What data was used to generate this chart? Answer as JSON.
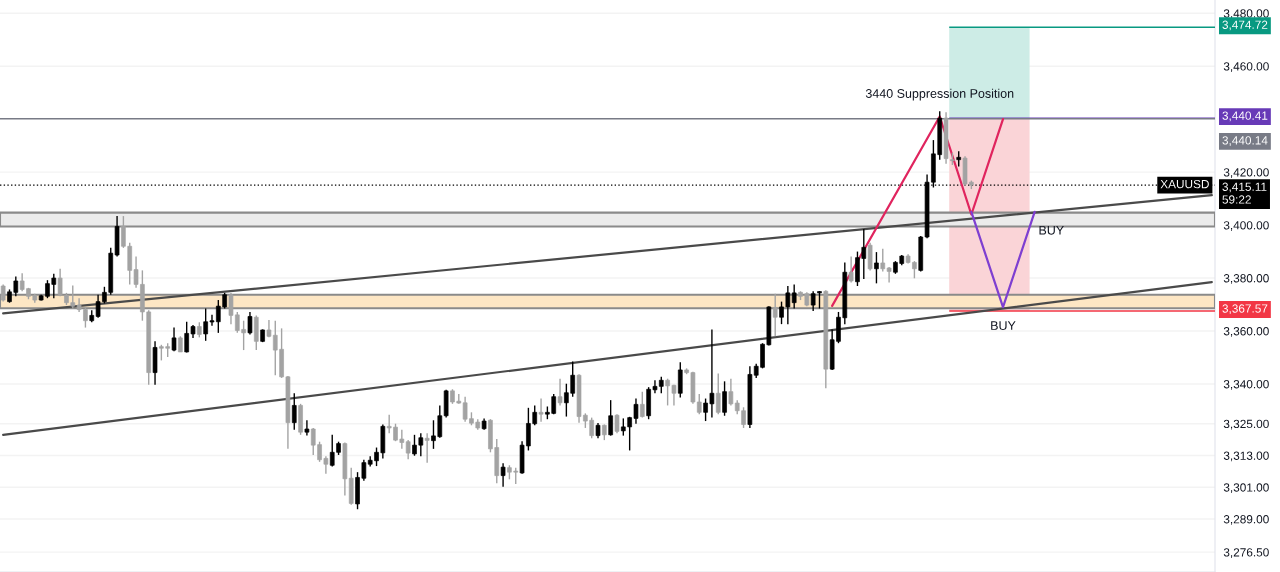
{
  "chart_data": {
    "type": "candlestick",
    "categories": [
      null,
      null,
      null,
      null,
      null,
      null,
      null,
      null,
      null,
      null,
      null,
      null,
      null,
      null,
      null,
      null,
      null,
      null,
      null,
      null,
      null,
      null,
      null,
      null,
      null,
      null,
      null,
      null,
      null,
      null,
      null,
      null,
      null,
      null,
      null,
      null,
      null,
      null,
      null,
      null,
      null,
      null,
      null,
      null,
      null,
      null,
      null,
      null,
      null,
      null,
      null,
      null,
      null,
      null,
      null,
      null,
      null,
      null,
      null,
      null,
      null,
      null,
      null,
      null,
      null,
      null,
      null,
      null,
      null,
      null,
      null,
      null,
      null,
      null,
      null,
      null,
      null,
      null,
      null,
      null,
      null,
      null,
      null,
      null,
      null,
      null,
      null,
      null,
      null,
      null,
      null,
      null,
      null,
      null,
      null,
      null,
      null,
      null,
      null,
      null,
      null,
      null,
      null,
      null,
      null,
      null,
      null,
      null,
      null,
      null,
      null,
      null,
      null,
      null,
      null,
      null,
      null,
      null,
      null,
      null,
      null,
      null,
      null,
      null,
      null,
      null,
      null,
      null,
      null,
      null,
      null,
      null,
      null,
      null,
      null,
      null,
      null,
      null,
      null,
      null,
      null,
      null,
      null,
      null,
      null,
      null,
      null,
      null,
      null,
      null,
      null,
      null,
      null,
      null,
      null,
      null,
      null,
      null,
      null,
      null,
      null,
      null,
      null,
      null,
      null,
      null,
      null,
      null,
      null,
      null,
      null,
      null,
      null,
      null,
      null,
      null,
      null,
      null,
      null,
      null,
      null,
      null,
      null,
      null,
      null,
      null,
      null,
      null,
      null,
      null,
      null,
      null
    ],
    "ylim": [
      3269,
      3485
    ],
    "yticks": [
      {
        "value": 3480,
        "label": "3,480.00"
      },
      {
        "value": 3460,
        "label": "3,460.00"
      },
      {
        "value": 3420,
        "label": "3,420.00"
      },
      {
        "value": 3400,
        "label": "3,400.00"
      },
      {
        "value": 3380,
        "label": "3,380.00"
      },
      {
        "value": 3360,
        "label": "3,360.00"
      },
      {
        "value": 3340,
        "label": "3,340.00"
      },
      {
        "value": 3325,
        "label": "3,325.00"
      },
      {
        "value": 3313,
        "label": "3,313.00"
      },
      {
        "value": 3301,
        "label": "3,301.00"
      },
      {
        "value": 3289,
        "label": "3,289.00"
      },
      {
        "value": 3276.5,
        "label": "3,276.50"
      }
    ],
    "tick_labels": "y",
    "grid": true,
    "bands": [
      {
        "axis": "y",
        "from": 3399.5,
        "to": 3404.7,
        "color": "#ebebeb"
      },
      {
        "axis": "y",
        "from": 3368.6,
        "to": 3373.7,
        "color": "#fde6c4"
      }
    ],
    "ref_lines": [
      {
        "axis": "y",
        "value": 3474.72,
        "label": "3,474.72",
        "color": "#089981"
      },
      {
        "axis": "y",
        "value": 3440.41,
        "label": "3,440.41",
        "color": "#673ab7"
      },
      {
        "axis": "y",
        "value": 3440.14,
        "label": "3,440.14",
        "color": "#787b86",
        "line_style": "solid"
      },
      {
        "axis": "y",
        "value": 3415.11,
        "label": "3,415.11\n59:22",
        "color": "#000000",
        "line_style": "dotted"
      },
      {
        "axis": "y",
        "value": 3367.57,
        "label": "3,367.57",
        "color": "#f23645"
      }
    ],
    "annotations": [
      "3440 Suppression Position",
      "BUY",
      "BUY",
      "XAUUSD"
    ],
    "series": [
      {
        "type": "line",
        "color": "#4a4a4a",
        "values": [
          3366.7,
          null,
          null,
          null,
          null,
          null,
          null,
          null,
          null,
          null,
          null,
          null,
          null,
          null,
          null,
          null,
          null,
          null,
          null,
          null,
          null,
          null,
          null,
          null,
          null,
          null,
          null,
          null,
          null,
          null,
          null,
          null,
          null,
          null,
          null,
          null,
          null,
          null,
          null,
          null,
          null,
          null,
          null,
          null,
          null,
          null,
          null,
          null,
          null,
          null,
          null,
          null,
          null,
          null,
          null,
          null,
          null,
          null,
          null,
          null,
          null,
          null,
          null,
          null,
          null,
          null,
          null,
          null,
          null,
          null,
          null,
          null,
          null,
          null,
          null,
          null,
          null,
          null,
          null,
          null,
          null,
          null,
          null,
          null,
          null,
          null,
          null,
          null,
          null,
          null,
          null,
          null,
          null,
          null,
          null,
          null,
          null,
          null,
          null,
          null,
          null,
          null,
          null,
          null,
          null,
          null,
          null,
          null,
          null,
          null,
          null,
          null,
          null,
          null,
          null,
          null,
          null,
          null,
          null,
          null,
          null,
          null,
          null,
          null,
          null,
          null,
          null,
          null,
          null,
          null,
          null,
          null,
          null,
          null,
          null,
          null,
          null,
          null,
          null,
          null,
          null,
          null,
          null,
          null,
          null,
          null,
          null,
          null,
          null,
          null,
          null,
          null,
          null,
          null,
          null,
          null,
          null,
          null,
          null,
          null,
          null,
          null,
          null,
          null,
          null,
          null,
          null,
          null,
          null,
          null,
          null,
          null,
          null,
          null,
          null,
          null,
          null,
          null,
          null,
          null,
          null,
          null,
          null,
          null,
          null,
          null,
          null,
          null,
          null,
          null,
          null,
          3411.3
        ]
      },
      {
        "type": "line",
        "color": "#4a4a4a",
        "values": [
          3320.8,
          null,
          null,
          null,
          null,
          null,
          null,
          null,
          null,
          null,
          null,
          null,
          null,
          null,
          null,
          null,
          null,
          null,
          null,
          null,
          null,
          null,
          null,
          null,
          null,
          null,
          null,
          null,
          null,
          null,
          null,
          null,
          null,
          null,
          null,
          null,
          null,
          null,
          null,
          null,
          null,
          null,
          null,
          null,
          null,
          null,
          null,
          null,
          null,
          null,
          null,
          null,
          null,
          null,
          null,
          null,
          null,
          null,
          null,
          null,
          null,
          null,
          null,
          null,
          null,
          null,
          null,
          null,
          null,
          null,
          null,
          null,
          null,
          null,
          null,
          null,
          null,
          null,
          null,
          null,
          null,
          null,
          null,
          null,
          null,
          null,
          null,
          null,
          null,
          null,
          null,
          null,
          null,
          null,
          null,
          null,
          null,
          null,
          null,
          null,
          null,
          null,
          null,
          null,
          null,
          null,
          null,
          null,
          null,
          null,
          null,
          null,
          null,
          null,
          null,
          null,
          null,
          null,
          null,
          null,
          null,
          null,
          null,
          null,
          null,
          null,
          null,
          null,
          null,
          null,
          null,
          null,
          null,
          null,
          null,
          null,
          null,
          null,
          null,
          null,
          null,
          null,
          null,
          null,
          null,
          null,
          null,
          null,
          null,
          null,
          null,
          null,
          null,
          null,
          null,
          null,
          null,
          null,
          null,
          null,
          null,
          null,
          null,
          null,
          null,
          null,
          null,
          null,
          null,
          null,
          null,
          null,
          null,
          null,
          null,
          null,
          null,
          null,
          null,
          null,
          null,
          null,
          null,
          null,
          null,
          null,
          null,
          null,
          null,
          null,
          null,
          3378.5
        ]
      },
      {
        "type": "line",
        "color": "#e0245e",
        "values": [
          null,
          null,
          null,
          null,
          null,
          null,
          null,
          null,
          null,
          null,
          null,
          null,
          null,
          null,
          null,
          null,
          null,
          null,
          null,
          null,
          null,
          null,
          null,
          null,
          null,
          null,
          null,
          null,
          null,
          null,
          null,
          null,
          null,
          null,
          null,
          null,
          null,
          null,
          null,
          null,
          null,
          null,
          null,
          null,
          null,
          null,
          null,
          null,
          null,
          null,
          null,
          null,
          null,
          null,
          null,
          null,
          null,
          null,
          null,
          null,
          null,
          null,
          null,
          null,
          null,
          null,
          null,
          null,
          null,
          null,
          null,
          null,
          null,
          null,
          null,
          null,
          null,
          null,
          null,
          null,
          null,
          null,
          null,
          null,
          null,
          null,
          null,
          null,
          null,
          null,
          null,
          null,
          null,
          null,
          null,
          null,
          null,
          null,
          null,
          null,
          null,
          null,
          null,
          null,
          null,
          null,
          null,
          null,
          null,
          null,
          null,
          null,
          null,
          null,
          null,
          null,
          null,
          null,
          null,
          null,
          null,
          null,
          null,
          null,
          null,
          null,
          null,
          null,
          null,
          null,
          null,
          3369.5,
          null,
          null,
          null,
          null,
          null,
          null,
          null,
          null,
          null,
          null,
          null,
          null,
          null,
          null,
          null,
          null,
          3441,
          null,
          null,
          null,
          null,
          3404,
          null,
          null,
          null,
          null,
          3440,
          null,
          null,
          null,
          null,
          null,
          null,
          null,
          null,
          null,
          null,
          null,
          null,
          null,
          null,
          null,
          null,
          null,
          null,
          null,
          null,
          null,
          null,
          null,
          null,
          null,
          null,
          null,
          null,
          null,
          null,
          null,
          null,
          null
        ]
      },
      {
        "type": "line",
        "color": "#7e3fd1",
        "values": [
          null,
          null,
          null,
          null,
          null,
          null,
          null,
          null,
          null,
          null,
          null,
          null,
          null,
          null,
          null,
          null,
          null,
          null,
          null,
          null,
          null,
          null,
          null,
          null,
          null,
          null,
          null,
          null,
          null,
          null,
          null,
          null,
          null,
          null,
          null,
          null,
          null,
          null,
          null,
          null,
          null,
          null,
          null,
          null,
          null,
          null,
          null,
          null,
          null,
          null,
          null,
          null,
          null,
          null,
          null,
          null,
          null,
          null,
          null,
          null,
          null,
          null,
          null,
          null,
          null,
          null,
          null,
          null,
          null,
          null,
          null,
          null,
          null,
          null,
          null,
          null,
          null,
          null,
          null,
          null,
          null,
          null,
          null,
          null,
          null,
          null,
          null,
          null,
          null,
          null,
          null,
          null,
          null,
          null,
          null,
          null,
          null,
          null,
          null,
          null,
          null,
          null,
          null,
          null,
          null,
          null,
          null,
          null,
          null,
          null,
          null,
          null,
          null,
          null,
          null,
          null,
          null,
          null,
          null,
          null,
          null,
          null,
          null,
          null,
          null,
          null,
          null,
          null,
          null,
          null,
          null,
          null,
          null,
          null,
          null,
          null,
          null,
          null,
          null,
          null,
          null,
          null,
          null,
          null,
          null,
          null,
          null,
          null,
          null,
          null,
          null,
          null,
          null,
          3405,
          null,
          null,
          null,
          null,
          3369,
          null,
          null,
          null,
          null,
          3405,
          null,
          null,
          null,
          null,
          null,
          null,
          null,
          null,
          null,
          null,
          null,
          null,
          null,
          null,
          null,
          null,
          null,
          null,
          null,
          null,
          null,
          null,
          null,
          null,
          null,
          null,
          null,
          null
        ]
      },
      {
        "ohlc": [
          [
            3377.0,
            3377.6,
            3371.1,
            3371.7
          ],
          [
            3371.1,
            3375.7,
            3370.7,
            3374.8
          ],
          [
            3374.6,
            3380.6,
            3373.1,
            3378.9
          ],
          [
            3378.9,
            3381.8,
            3375.0,
            3375.7
          ],
          [
            3376.0,
            3376.3,
            3372.0,
            3373.1
          ],
          [
            3373.3,
            3374.1,
            3370.7,
            3371.7
          ],
          [
            3371.7,
            3373.7,
            3371.5,
            3373.3
          ],
          [
            3373.1,
            3379.2,
            3372.4,
            3377.9
          ],
          [
            3377.6,
            3381.6,
            3372.4,
            3380.0
          ],
          [
            3380.0,
            3383.5,
            3373.1,
            3373.7
          ],
          [
            3373.3,
            3374.4,
            3369.8,
            3370.7
          ],
          [
            3370.7,
            3377.2,
            3368.5,
            3369.4
          ],
          [
            3369.8,
            3372.4,
            3367.2,
            3368.1
          ],
          [
            3368.1,
            3369.1,
            3361.3,
            3363.9
          ],
          [
            3363.9,
            3367.8,
            3363.3,
            3365.9
          ],
          [
            3365.5,
            3373.7,
            3365.0,
            3371.1
          ],
          [
            3371.1,
            3376.7,
            3370.4,
            3374.6
          ],
          [
            3374.6,
            3391.4,
            3373.7,
            3389.4
          ],
          [
            3388.7,
            3403.4,
            3388.1,
            3399.5
          ],
          [
            3399.5,
            3403.4,
            3391.4,
            3392.0
          ],
          [
            3392.0,
            3393.3,
            3377.6,
            3382.9
          ],
          [
            3383.2,
            3388.1,
            3376.3,
            3377.6
          ],
          [
            3377.6,
            3382.9,
            3363.9,
            3367.2
          ],
          [
            3367.2,
            3367.8,
            3339.7,
            3344.3
          ],
          [
            3344.3,
            3356.1,
            3339.7,
            3353.8
          ],
          [
            3354.1,
            3354.8,
            3348.9,
            3353.5
          ],
          [
            3354.1,
            3355.4,
            3350.2,
            3353.5
          ],
          [
            3352.8,
            3361.3,
            3352.4,
            3357.4
          ],
          [
            3357.4,
            3358.0,
            3352.1,
            3352.1
          ],
          [
            3352.1,
            3363.5,
            3351.9,
            3359.1
          ],
          [
            3358.9,
            3362.3,
            3357.4,
            3361.7
          ],
          [
            3361.7,
            3363.3,
            3357.6,
            3358.7
          ],
          [
            3358.9,
            3368.5,
            3356.3,
            3363.5
          ],
          [
            3363.4,
            3366.1,
            3362.0,
            3363.9
          ],
          [
            3363.5,
            3371.7,
            3359.3,
            3369.4
          ],
          [
            3369.1,
            3374.4,
            3368.5,
            3373.7
          ],
          [
            3373.7,
            3374.4,
            3362.6,
            3365.9
          ],
          [
            3366.1,
            3367.2,
            3359.3,
            3360.2
          ],
          [
            3360.6,
            3363.9,
            3352.8,
            3359.3
          ],
          [
            3359.3,
            3367.2,
            3358.7,
            3365.5
          ],
          [
            3365.2,
            3365.9,
            3352.8,
            3356.1
          ],
          [
            3356.1,
            3360.6,
            3355.8,
            3360.4
          ],
          [
            3360.4,
            3364.2,
            3357.6,
            3358.0
          ],
          [
            3358.4,
            3363.9,
            3343.3,
            3352.8
          ],
          [
            3353.1,
            3361.0,
            3342.3,
            3342.7
          ],
          [
            3342.7,
            3343.0,
            3315.5,
            3325.4
          ],
          [
            3325.4,
            3336.5,
            3322.7,
            3331.9
          ],
          [
            3331.9,
            3332.5,
            3320.8,
            3321.8
          ],
          [
            3321.8,
            3326.3,
            3320.5,
            3323.0
          ],
          [
            3323.0,
            3323.4,
            3313.2,
            3316.9
          ],
          [
            3317.1,
            3318.2,
            3310.6,
            3311.4
          ],
          [
            3311.9,
            3312.7,
            3306.1,
            3309.7
          ],
          [
            3309.3,
            3320.8,
            3308.8,
            3314.2
          ],
          [
            3314.2,
            3318.2,
            3313.2,
            3317.5
          ],
          [
            3317.5,
            3317.9,
            3297.9,
            3304.2
          ],
          [
            3304.4,
            3308.4,
            3294.4,
            3294.9
          ],
          [
            3294.7,
            3306.7,
            3292.7,
            3304.7
          ],
          [
            3304.4,
            3311.4,
            3303.5,
            3310.3
          ],
          [
            3309.7,
            3312.7,
            3308.8,
            3311.2
          ],
          [
            3311.0,
            3316.0,
            3309.0,
            3314.2
          ],
          [
            3314.0,
            3324.7,
            3311.9,
            3324.0
          ],
          [
            3324.0,
            3328.4,
            3321.4,
            3323.4
          ],
          [
            3323.7,
            3325.0,
            3318.4,
            3318.8
          ],
          [
            3319.2,
            3322.7,
            3315.5,
            3317.9
          ],
          [
            3318.2,
            3318.8,
            3311.6,
            3313.9
          ],
          [
            3313.6,
            3320.8,
            3312.9,
            3316.9
          ],
          [
            3316.9,
            3321.4,
            3312.7,
            3319.7
          ],
          [
            3319.5,
            3321.4,
            3310.3,
            3318.7
          ],
          [
            3318.6,
            3326.3,
            3315.5,
            3320.4
          ],
          [
            3320.1,
            3331.9,
            3319.7,
            3328.0
          ],
          [
            3328.0,
            3337.8,
            3327.3,
            3337.4
          ],
          [
            3337.4,
            3338.0,
            3332.5,
            3333.2
          ],
          [
            3333.5,
            3336.2,
            3332.5,
            3332.8
          ],
          [
            3332.9,
            3335.2,
            3325.7,
            3326.7
          ],
          [
            3326.9,
            3329.3,
            3324.4,
            3325.2
          ],
          [
            3325.6,
            3326.7,
            3322.7,
            3323.4
          ],
          [
            3323.1,
            3327.0,
            3322.7,
            3326.0
          ],
          [
            3326.3,
            3326.7,
            3314.2,
            3315.5
          ],
          [
            3316.0,
            3319.2,
            3302.5,
            3305.4
          ],
          [
            3305.4,
            3310.1,
            3301.2,
            3308.6
          ],
          [
            3308.4,
            3309.3,
            3304.0,
            3306.7
          ],
          [
            3307.1,
            3308.4,
            3302.2,
            3306.7
          ],
          [
            3306.4,
            3318.4,
            3306.1,
            3316.9
          ],
          [
            3316.6,
            3331.0,
            3314.9,
            3325.1
          ],
          [
            3325.0,
            3331.9,
            3324.4,
            3329.3
          ],
          [
            3329.3,
            3334.5,
            3325.7,
            3328.6
          ],
          [
            3328.6,
            3331.5,
            3326.7,
            3329.3
          ],
          [
            3328.9,
            3336.2,
            3328.6,
            3335.2
          ],
          [
            3335.2,
            3342.0,
            3331.9,
            3332.9
          ],
          [
            3332.9,
            3340.1,
            3327.7,
            3336.7
          ],
          [
            3336.5,
            3348.5,
            3335.2,
            3343.3
          ],
          [
            3343.3,
            3343.7,
            3325.4,
            3327.7
          ],
          [
            3328.2,
            3328.9,
            3323.4,
            3326.0
          ],
          [
            3326.3,
            3327.3,
            3319.5,
            3320.5
          ],
          [
            3320.5,
            3325.3,
            3319.5,
            3324.4
          ],
          [
            3324.4,
            3324.7,
            3318.8,
            3320.8
          ],
          [
            3320.8,
            3333.9,
            3320.5,
            3328.0
          ],
          [
            3328.2,
            3328.6,
            3321.4,
            3322.1
          ],
          [
            3322.3,
            3327.0,
            3320.5,
            3323.8
          ],
          [
            3323.8,
            3327.6,
            3314.9,
            3327.3
          ],
          [
            3327.0,
            3334.5,
            3325.0,
            3332.3
          ],
          [
            3332.3,
            3337.1,
            3327.3,
            3327.7
          ],
          [
            3328.0,
            3338.8,
            3326.7,
            3338.0
          ],
          [
            3337.8,
            3341.4,
            3336.5,
            3339.1
          ],
          [
            3339.1,
            3342.7,
            3336.5,
            3341.4
          ],
          [
            3341.4,
            3342.0,
            3331.9,
            3339.3
          ],
          [
            3339.5,
            3339.7,
            3331.9,
            3336.5
          ],
          [
            3336.5,
            3348.2,
            3334.9,
            3345.3
          ],
          [
            3345.3,
            3345.9,
            3343.7,
            3344.3
          ],
          [
            3344.3,
            3344.6,
            3332.5,
            3333.2
          ],
          [
            3333.2,
            3336.2,
            3328.6,
            3329.3
          ],
          [
            3329.3,
            3334.5,
            3326.0,
            3332.8
          ],
          [
            3332.5,
            3360.6,
            3327.3,
            3336.5
          ],
          [
            3336.5,
            3344.0,
            3328.6,
            3329.3
          ],
          [
            3329.3,
            3341.0,
            3328.0,
            3337.1
          ],
          [
            3337.1,
            3342.0,
            3331.9,
            3332.5
          ],
          [
            3332.8,
            3333.9,
            3328.6,
            3329.9
          ],
          [
            3329.9,
            3331.2,
            3323.4,
            3324.7
          ],
          [
            3324.7,
            3346.7,
            3323.4,
            3343.6
          ],
          [
            3343.3,
            3347.6,
            3342.3,
            3346.7
          ],
          [
            3346.3,
            3355.4,
            3345.9,
            3355.0
          ],
          [
            3354.8,
            3369.4,
            3354.5,
            3369.1
          ],
          [
            3368.9,
            3374.1,
            3358.0,
            3365.2
          ],
          [
            3365.2,
            3371.1,
            3362.6,
            3369.1
          ],
          [
            3369.1,
            3377.0,
            3362.6,
            3374.4
          ],
          [
            3370.7,
            3377.6,
            3368.5,
            3374.4
          ],
          [
            3374.6,
            3375.0,
            3371.7,
            3373.1
          ],
          [
            3374.1,
            3374.6,
            3369.4,
            3369.8
          ],
          [
            3369.8,
            3375.0,
            3367.6,
            3374.1
          ],
          [
            3374.4,
            3375.1,
            3368.5,
            3374.9
          ],
          [
            3375.0,
            3375.4,
            3338.4,
            3345.6
          ],
          [
            3345.6,
            3360.6,
            3345.3,
            3356.7
          ],
          [
            3356.1,
            3367.2,
            3355.4,
            3365.2
          ],
          [
            3365.0,
            3385.9,
            3362.6,
            3382.2
          ],
          [
            3382.2,
            3388.1,
            3378.3,
            3378.9
          ],
          [
            3378.6,
            3390.0,
            3377.0,
            3387.7
          ],
          [
            3387.4,
            3398.5,
            3379.6,
            3391.6
          ],
          [
            3392.4,
            3393.3,
            3382.9,
            3383.5
          ],
          [
            3383.5,
            3389.8,
            3378.0,
            3385.7
          ],
          [
            3385.7,
            3391.1,
            3382.5,
            3383.5
          ],
          [
            3383.8,
            3384.2,
            3378.3,
            3382.5
          ],
          [
            3382.2,
            3386.4,
            3381.6,
            3385.9
          ],
          [
            3385.5,
            3388.7,
            3384.8,
            3388.3
          ],
          [
            3388.3,
            3389.0,
            3385.5,
            3385.9
          ],
          [
            3385.9,
            3386.4,
            3379.9,
            3383.5
          ],
          [
            3382.9,
            3395.9,
            3382.5,
            3395.5
          ],
          [
            3395.5,
            3419.1,
            3395.0,
            3416.2
          ],
          [
            3416.2,
            3432.1,
            3414.2,
            3426.9
          ],
          [
            3426.6,
            3443.0,
            3424.7,
            3440.4
          ],
          [
            3440.4,
            3442.6,
            3423.2,
            3425.1
          ],
          [
            3424.7,
            3427.3,
            3422.7,
            3424.3
          ],
          [
            3424.7,
            3427.9,
            3422.1,
            3425.6
          ],
          [
            3425.3,
            3426.0,
            3414.9,
            3415.5
          ],
          [
            3416.2,
            3416.8,
            3413.6,
            3415.1
          ],
          null,
          null,
          null,
          null,
          null,
          null,
          null,
          null,
          null,
          null,
          null,
          null,
          null,
          null,
          null,
          null,
          null,
          null,
          null,
          null,
          null,
          null,
          null,
          null,
          null,
          null,
          null,
          null,
          null,
          null,
          null,
          null,
          null,
          null,
          null,
          null,
          null,
          null
        ],
        "colors": [
          "#a3a3a3",
          "#000000",
          "#000000",
          "#a3a3a3",
          "#a3a3a3",
          "#a3a3a3",
          "#000000",
          "#000000",
          "#000000",
          "#a3a3a3",
          "#a3a3a3",
          "#a3a3a3",
          "#a3a3a3",
          "#a3a3a3",
          "#000000",
          "#000000",
          "#000000",
          "#000000",
          "#000000",
          "#a3a3a3",
          "#a3a3a3",
          "#a3a3a3",
          "#a3a3a3",
          "#a3a3a3",
          "#000000",
          "#a3a3a3",
          "#a3a3a3",
          "#000000",
          "#a3a3a3",
          "#000000",
          "#000000",
          "#a3a3a3",
          "#000000",
          "#000000",
          "#000000",
          "#000000",
          "#a3a3a3",
          "#a3a3a3",
          "#a3a3a3",
          "#000000",
          "#a3a3a3",
          "#000000",
          "#a3a3a3",
          "#a3a3a3",
          "#a3a3a3",
          "#a3a3a3",
          "#000000",
          "#a3a3a3",
          "#000000",
          "#a3a3a3",
          "#a3a3a3",
          "#a3a3a3",
          "#000000",
          "#000000",
          "#a3a3a3",
          "#a3a3a3",
          "#000000",
          "#000000",
          "#000000",
          "#000000",
          "#000000",
          "#a3a3a3",
          "#a3a3a3",
          "#a3a3a3",
          "#a3a3a3",
          "#000000",
          "#000000",
          "#a3a3a3",
          "#000000",
          "#000000",
          "#000000",
          "#a3a3a3",
          "#a3a3a3",
          "#a3a3a3",
          "#a3a3a3",
          "#a3a3a3",
          "#000000",
          "#a3a3a3",
          "#a3a3a3",
          "#000000",
          "#a3a3a3",
          "#a3a3a3",
          "#000000",
          "#000000",
          "#000000",
          "#a3a3a3",
          "#000000",
          "#000000",
          "#a3a3a3",
          "#000000",
          "#000000",
          "#a3a3a3",
          "#a3a3a3",
          "#a3a3a3",
          "#000000",
          "#a3a3a3",
          "#000000",
          "#a3a3a3",
          "#000000",
          "#000000",
          "#000000",
          "#a3a3a3",
          "#000000",
          "#000000",
          "#000000",
          "#a3a3a3",
          "#a3a3a3",
          "#000000",
          "#a3a3a3",
          "#a3a3a3",
          "#a3a3a3",
          "#000000",
          "#000000",
          "#a3a3a3",
          "#000000",
          "#a3a3a3",
          "#a3a3a3",
          "#a3a3a3",
          "#000000",
          "#000000",
          "#000000",
          "#000000",
          "#a3a3a3",
          "#000000",
          "#000000",
          "#000000",
          "#a3a3a3",
          "#a3a3a3",
          "#000000",
          "#000000",
          "#a3a3a3",
          "#000000",
          "#000000",
          "#000000",
          "#a3a3a3",
          "#000000",
          "#000000",
          "#a3a3a3",
          "#000000",
          "#a3a3a3",
          "#a3a3a3",
          "#000000",
          "#000000",
          "#a3a3a3",
          "#a3a3a3",
          "#000000",
          "#000000",
          "#000000",
          "#000000",
          "#a3a3a3",
          "#a3a3a3",
          "#000000",
          "#a3a3a3",
          "#a3a3a3",
          null,
          null,
          null,
          null,
          null,
          null,
          null,
          null,
          null,
          null,
          null,
          null,
          null,
          null,
          null,
          null,
          null,
          null,
          null,
          null,
          null,
          null,
          null,
          null,
          null,
          null,
          null,
          null,
          null,
          null,
          null,
          null,
          null,
          null,
          null,
          null,
          null,
          null
        ]
      }
    ]
  }
}
